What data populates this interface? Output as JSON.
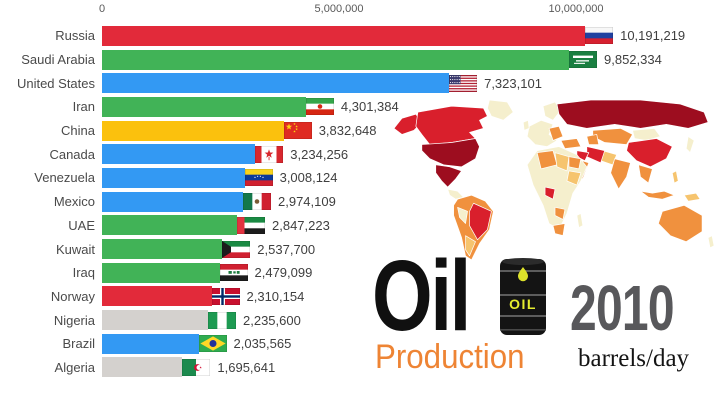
{
  "title_block": {
    "word1": "Oil",
    "word2": "Production",
    "year": "2010",
    "unit": "barrels/day",
    "barrel_label": "OIL"
  },
  "palette": {
    "bars": {
      "red": "#e22a3a",
      "green": "#41b357",
      "blue": "#3399f3",
      "yellow": "#fbc10d",
      "gray": "#d4d1ce"
    },
    "title_orange": "#ee8434",
    "year_gray": "#58585b",
    "map": {
      "dark": "#9d0d1f",
      "red": "#d91f2c",
      "orange": "#f0913e",
      "lorange": "#f6c46e",
      "pale": "#f5efcd"
    }
  },
  "chart_data": {
    "type": "bar",
    "orientation": "horizontal",
    "title": "Oil Production",
    "subtitle_year": "2010",
    "unit": "barrels/day",
    "grid": false,
    "legend": false,
    "x_axis": {
      "tick_labels": [
        "0",
        "5,000,000",
        "10,000,000"
      ],
      "tick_values": [
        0,
        5000000,
        10000000
      ],
      "range": [
        0,
        11000000
      ]
    },
    "countries": [
      {
        "name": "Russia",
        "value": 10191219,
        "label": "10,191,219",
        "color": "red",
        "flag": "russia"
      },
      {
        "name": "Saudi Arabia",
        "value": 9852334,
        "label": "9,852,334",
        "color": "green",
        "flag": "saudi"
      },
      {
        "name": "United States",
        "value": 7323101,
        "label": "7,323,101",
        "color": "blue",
        "flag": "usa"
      },
      {
        "name": "Iran",
        "value": 4301384,
        "label": "4,301,384",
        "color": "green",
        "flag": "iran"
      },
      {
        "name": "China",
        "value": 3832648,
        "label": "3,832,648",
        "color": "yellow",
        "flag": "china"
      },
      {
        "name": "Canada",
        "value": 3234256,
        "label": "3,234,256",
        "color": "blue",
        "flag": "canada"
      },
      {
        "name": "Venezuela",
        "value": 3008124,
        "label": "3,008,124",
        "color": "blue",
        "flag": "venezuela"
      },
      {
        "name": "Mexico",
        "value": 2974109,
        "label": "2,974,109",
        "color": "blue",
        "flag": "mexico"
      },
      {
        "name": "UAE",
        "value": 2847223,
        "label": "2,847,223",
        "color": "green",
        "flag": "uae"
      },
      {
        "name": "Kuwait",
        "value": 2537700,
        "label": "2,537,700",
        "color": "green",
        "flag": "kuwait"
      },
      {
        "name": "Iraq",
        "value": 2479099,
        "label": "2,479,099",
        "color": "green",
        "flag": "iraq"
      },
      {
        "name": "Norway",
        "value": 2310154,
        "label": "2,310,154",
        "color": "red",
        "flag": "norway"
      },
      {
        "name": "Nigeria",
        "value": 2235600,
        "label": "2,235,600",
        "color": "gray",
        "flag": "nigeria"
      },
      {
        "name": "Brazil",
        "value": 2035565,
        "label": "2,035,565",
        "color": "blue",
        "flag": "brazil"
      },
      {
        "name": "Algeria",
        "value": 1695641,
        "label": "1,695,641",
        "color": "gray",
        "flag": "algeria"
      }
    ]
  },
  "flags": {
    "russia": {
      "type": "h",
      "colors": [
        "#f7f7f7",
        "#2041a0",
        "#d6202f"
      ]
    },
    "saudi": {
      "type": "saudi",
      "colors": [
        "#1a7f41",
        "#ffffff"
      ]
    },
    "usa": {
      "type": "usa",
      "colors": [
        "#b22234",
        "#ffffff",
        "#3c3b6e"
      ]
    },
    "iran": {
      "type": "iran",
      "colors": [
        "#35a54a",
        "#ffffff",
        "#d62612"
      ]
    },
    "china": {
      "type": "china",
      "colors": [
        "#df2b22",
        "#fcd20f"
      ]
    },
    "canada": {
      "type": "canada",
      "colors": [
        "#d8272e",
        "#ffffff"
      ]
    },
    "venezuela": {
      "type": "venez",
      "colors": [
        "#f8d31c",
        "#0a3a99",
        "#d0202f",
        "#ffffff"
      ]
    },
    "mexico": {
      "type": "v3c",
      "colors": [
        "#14784b",
        "#ffffff",
        "#d02030",
        "#7a5a34"
      ]
    },
    "uae": {
      "type": "uae",
      "colors": [
        "#e23340",
        "#1a8a43",
        "#ffffff",
        "#1c1c1c"
      ]
    },
    "kuwait": {
      "type": "kuwait",
      "colors": [
        "#1a8a43",
        "#ffffff",
        "#d02030",
        "#1c1c1c"
      ]
    },
    "iraq": {
      "type": "iraq",
      "colors": [
        "#d02030",
        "#ffffff",
        "#1c1c1c",
        "#1a7a3d"
      ]
    },
    "norway": {
      "type": "nordic",
      "colors": [
        "#c8102e",
        "#ffffff",
        "#002868"
      ]
    },
    "nigeria": {
      "type": "v",
      "colors": [
        "#1d9a52",
        "#ffffff",
        "#1d9a52"
      ]
    },
    "brazil": {
      "type": "brazil",
      "colors": [
        "#2fac4f",
        "#ffd827",
        "#21329a"
      ]
    },
    "algeria": {
      "type": "algeria",
      "colors": [
        "#1c8a4e",
        "#ffffff",
        "#d21034"
      ]
    }
  }
}
